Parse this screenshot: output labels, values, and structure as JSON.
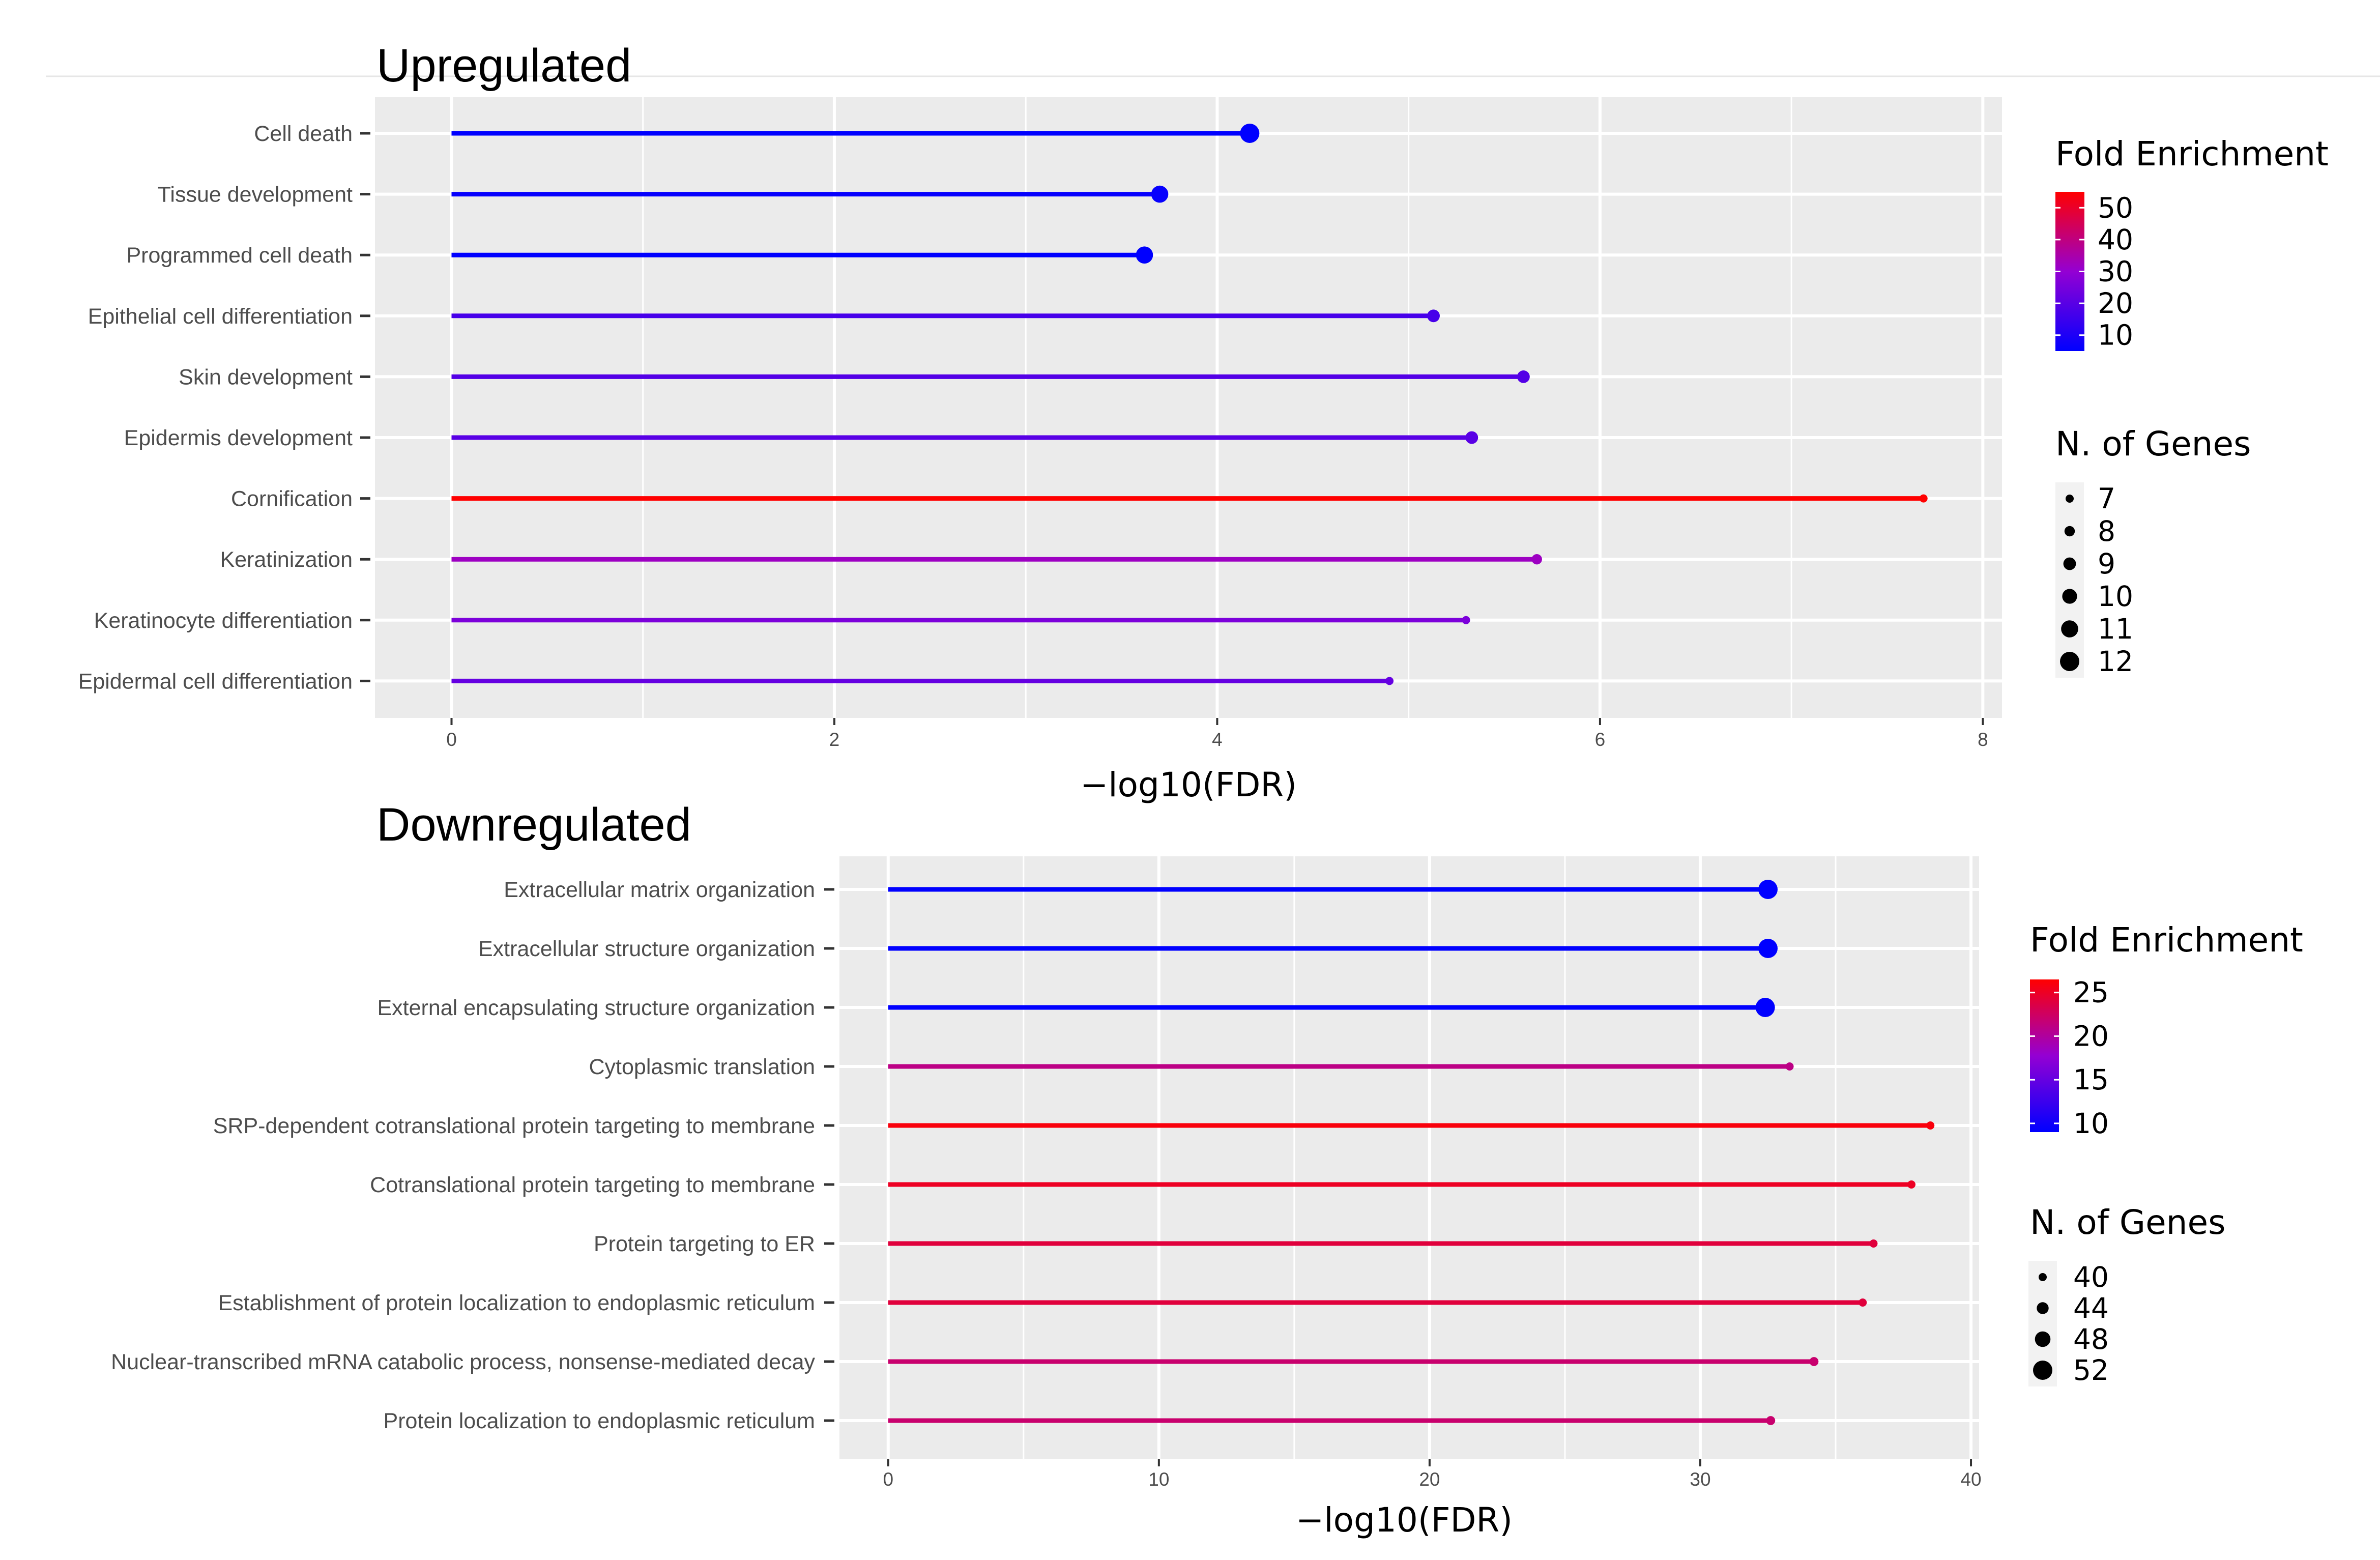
{
  "chart_data": [
    {
      "type": "lollipop",
      "title": "Upregulated",
      "xlabel": "−log10(FDR)",
      "ylabel": "",
      "xlim": [
        -0.4,
        8.1
      ],
      "xticks": [
        "0",
        "2",
        "4",
        "6",
        "8"
      ],
      "grid": true,
      "categories": [
        "Cell death",
        "Tissue development",
        "Programmed cell death",
        "Epithelial cell differentiation",
        "Skin development",
        "Epidermis development",
        "Cornification",
        "Keratinization",
        "Keratinocyte differentiation",
        "Epidermal cell differentiation"
      ],
      "values": [
        4.17,
        3.7,
        3.62,
        5.13,
        5.6,
        5.33,
        7.69,
        5.67,
        5.3,
        4.9
      ],
      "fold_enrichment": [
        5,
        6,
        5,
        17,
        19,
        20,
        55,
        32,
        26,
        22
      ],
      "n_genes": [
        12,
        11,
        11,
        9,
        9,
        9,
        7,
        8,
        7,
        7
      ],
      "legend": {
        "color_title": "Fold Enrichment",
        "color_ticks": [
          "50",
          "40",
          "30",
          "20",
          "10"
        ],
        "color_range": [
          5,
          55
        ],
        "size_title": "N. of Genes",
        "size_entries": [
          "7",
          "8",
          "9",
          "10",
          "11",
          "12"
        ],
        "position": "right"
      }
    },
    {
      "type": "lollipop",
      "title": "Downregulated",
      "xlabel": "−log10(FDR)",
      "ylabel": "",
      "xlim": [
        -1.8,
        40.3
      ],
      "xticks": [
        "0",
        "10",
        "20",
        "30",
        "40"
      ],
      "grid": true,
      "categories": [
        "Extracellular matrix organization",
        "Extracellular structure organization",
        "External encapsulating structure organization",
        "Cytoplasmic translation",
        "SRP-dependent cotranslational protein targeting to membrane",
        "Cotranslational protein targeting to membrane",
        "Protein targeting to ER",
        "Establishment of protein localization to endoplasmic reticulum",
        "Nuclear-transcribed mRNA catabolic process, nonsense-mediated decay",
        "Protein localization to endoplasmic reticulum"
      ],
      "values": [
        32.5,
        32.5,
        32.4,
        33.3,
        38.5,
        37.8,
        36.4,
        36.0,
        34.2,
        32.6
      ],
      "fold_enrichment": [
        9,
        9,
        9,
        21,
        26,
        25,
        24,
        24,
        22,
        22
      ],
      "n_genes": [
        52,
        52,
        52,
        40,
        40,
        40,
        40,
        40,
        41,
        41
      ],
      "legend": {
        "color_title": "Fold Enrichment",
        "color_ticks": [
          "25",
          "20",
          "15",
          "10"
        ],
        "color_range": [
          9,
          26.5
        ],
        "size_title": "N. of Genes",
        "size_entries": [
          "40",
          "44",
          "48",
          "52"
        ],
        "position": "right"
      }
    }
  ]
}
